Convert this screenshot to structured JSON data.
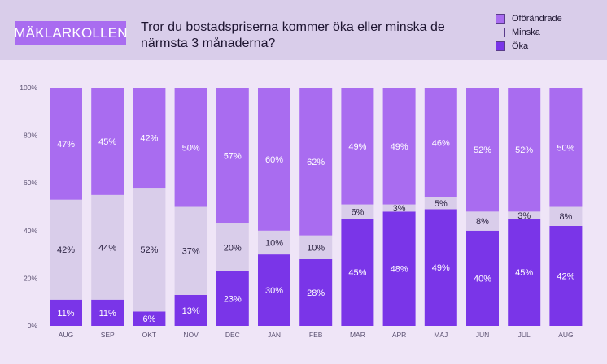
{
  "brand": "MÄKLARKOLLEN",
  "question": "Tror du bostadspriserna kommer öka eller minska de närmsta 3 månaderna?",
  "colors": {
    "oforandrade": "#a96cf0",
    "minska": "#d9cdea",
    "oka": "#7a35e8"
  },
  "chart_data": {
    "type": "bar",
    "stacked": true,
    "title": "Tror du bostadspriserna kommer öka eller minska de närmsta 3 månaderna?",
    "categories": [
      "AUG",
      "SEP",
      "OKT",
      "NOV",
      "DEC",
      "JAN",
      "FEB",
      "MAR",
      "APR",
      "MAJ",
      "JUN",
      "JUL",
      "AUG"
    ],
    "series": [
      {
        "name": "Öka",
        "values": [
          11,
          11,
          6,
          13,
          23,
          30,
          28,
          45,
          48,
          49,
          40,
          45,
          42
        ]
      },
      {
        "name": "Minska",
        "values": [
          42,
          44,
          52,
          37,
          20,
          10,
          10,
          6,
          3,
          5,
          8,
          3,
          8
        ]
      },
      {
        "name": "Oförändrade",
        "values": [
          47,
          45,
          42,
          50,
          57,
          60,
          62,
          49,
          49,
          46,
          52,
          52,
          50
        ]
      }
    ],
    "y_ticks": [
      "0%",
      "20%",
      "40%",
      "60%",
      "80%",
      "100%"
    ],
    "ylim": [
      0,
      100
    ],
    "legend": [
      "Oförändrade",
      "Minska",
      "Öka"
    ],
    "legend_position": "top-right"
  }
}
